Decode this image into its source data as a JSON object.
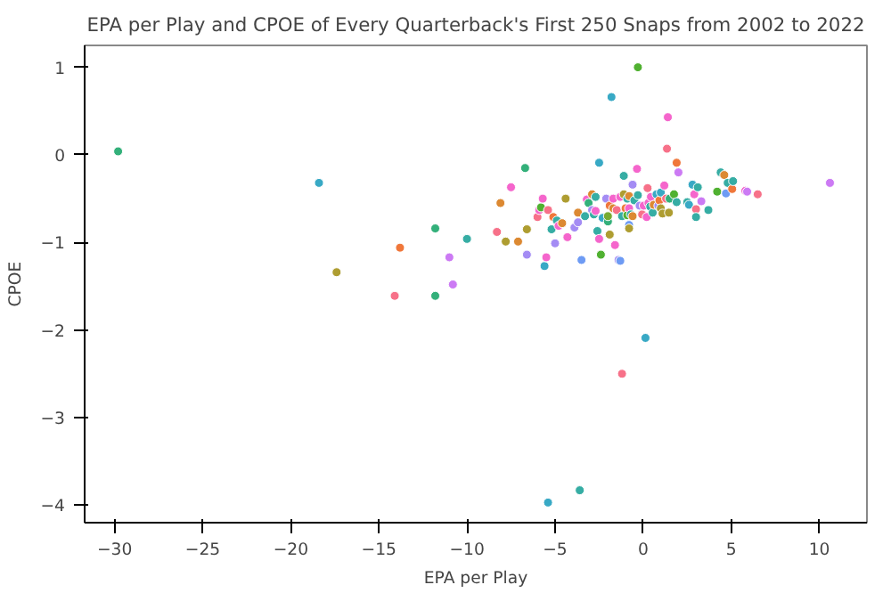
{
  "chart_data": {
    "type": "scatter",
    "title": "EPA per Play and CPOE of Every Quarterback's First 250 Snaps from 2002 to 2022",
    "xlabel": "EPA per Play",
    "ylabel": "CPOE",
    "xlim": [
      -31.7,
      12.7
    ],
    "ylim": [
      -4.2,
      1.25
    ],
    "xticks": [
      -30,
      -25,
      -20,
      -15,
      -10,
      -5,
      0,
      5,
      10
    ],
    "yticks": [
      -4,
      -3,
      -2,
      -1,
      0,
      1
    ],
    "grid": false,
    "marker": "circle",
    "x": [
      -29.8,
      -18.4,
      -17.4,
      -13.8,
      -14.1,
      -11.8,
      -11.8,
      -11.0,
      -10.8,
      -10.0,
      -8.3,
      -8.1,
      -7.8,
      -7.5,
      -7.1,
      -6.7,
      -6.6,
      -6.6,
      -6.0,
      -5.9,
      -5.8,
      -5.7,
      -5.6,
      -5.5,
      -5.4,
      -5.2,
      -5.1,
      -5.0,
      -4.9,
      -4.8,
      -4.6,
      -4.4,
      -4.3,
      -3.9,
      -3.7,
      -3.7,
      -3.5,
      -3.6,
      -5.4,
      -3.3,
      -3.2,
      -3.1,
      -2.9,
      -2.9,
      -2.8,
      -2.7,
      -2.7,
      -2.6,
      -2.5,
      -2.5,
      -2.4,
      -2.3,
      -2.0,
      -2.0,
      -2.1,
      -1.9,
      -1.8,
      -1.9,
      -1.7,
      -1.7,
      -1.6,
      -1.5,
      -1.4,
      -1.3,
      -1.3,
      -1.2,
      -1.2,
      -1.1,
      -1.1,
      -1.0,
      -0.9,
      -0.9,
      -0.8,
      -0.8,
      -0.8,
      -0.8,
      -0.7,
      -0.6,
      -0.6,
      -0.5,
      -0.35,
      -0.3,
      -0.3,
      -0.2,
      -0.06,
      0.03,
      0.13,
      0.2,
      0.25,
      0.3,
      0.4,
      0.44,
      0.54,
      0.6,
      0.76,
      0.86,
      0.92,
      1.0,
      1.0,
      1.1,
      1.2,
      1.3,
      1.35,
      1.4,
      1.46,
      1.5,
      1.75,
      1.9,
      1.9,
      2.0,
      2.5,
      2.6,
      2.8,
      2.9,
      3.0,
      3.0,
      3.1,
      3.3,
      3.7,
      4.2,
      4.4,
      4.6,
      4.7,
      4.8,
      5.05,
      5.1,
      5.8,
      5.9,
      6.5,
      10.6
    ],
    "values": [
      0.04,
      -0.32,
      -1.34,
      -1.06,
      -1.61,
      -0.84,
      -1.61,
      -1.17,
      -1.48,
      -0.96,
      -0.88,
      -0.55,
      -0.99,
      -0.37,
      -0.99,
      -0.15,
      -0.85,
      -1.14,
      -0.71,
      -0.63,
      -0.6,
      -0.5,
      -1.27,
      -1.17,
      -0.63,
      -0.85,
      -0.71,
      -1.01,
      -0.75,
      -0.81,
      -0.78,
      -0.5,
      -0.94,
      -0.83,
      -0.66,
      -0.77,
      -1.2,
      -3.83,
      -3.97,
      -0.7,
      -0.51,
      -0.55,
      -0.45,
      -0.63,
      -0.68,
      -0.48,
      -0.64,
      -0.87,
      -0.09,
      -0.96,
      -1.14,
      -0.72,
      -0.76,
      -0.7,
      -0.5,
      -0.91,
      0.66,
      -0.58,
      -0.61,
      -0.5,
      -1.03,
      -0.63,
      -1.2,
      -1.21,
      -0.48,
      -0.7,
      -2.5,
      -0.24,
      -0.45,
      -0.61,
      -0.5,
      -0.69,
      -0.47,
      -0.8,
      -0.84,
      -0.61,
      -0.68,
      -0.34,
      -0.7,
      -0.52,
      -0.16,
      1.0,
      -0.46,
      -0.58,
      -0.68,
      -0.58,
      -2.09,
      -0.71,
      -0.38,
      -0.55,
      -0.59,
      -0.48,
      -0.66,
      -0.57,
      -0.45,
      -0.58,
      -0.52,
      -0.43,
      -0.61,
      -0.67,
      -0.35,
      -0.5,
      0.07,
      0.43,
      -0.66,
      -0.5,
      -0.45,
      -0.09,
      -0.54,
      -0.2,
      -0.54,
      -0.57,
      -0.34,
      -0.45,
      -0.62,
      -0.71,
      -0.37,
      -0.53,
      -0.63,
      -0.42,
      -0.2,
      -0.23,
      -0.44,
      -0.32,
      -0.39,
      -0.3,
      -0.41,
      -0.42,
      -0.45,
      -0.32
    ],
    "colors": [
      "#33b07a",
      "#38a9c5",
      "#ae9d31",
      "#f0773a",
      "#f77189",
      "#33b07a",
      "#33b07a",
      "#cc7af4",
      "#cc7af4",
      "#36ada4",
      "#f77189",
      "#dc8932",
      "#ae9d31",
      "#f565cc",
      "#dc8932",
      "#33b07a",
      "#ae9d31",
      "#a48cf4",
      "#f77189",
      "#f565cc",
      "#50b131",
      "#f565cc",
      "#38a9c5",
      "#f565cc",
      "#f77189",
      "#36ada4",
      "#f0773a",
      "#a48cf4",
      "#36ada4",
      "#f565cc",
      "#dc8932",
      "#ae9d31",
      "#f565cc",
      "#a48cf4",
      "#dc8932",
      "#a48cf4",
      "#6e9bf4",
      "#36ada4",
      "#38a9c5",
      "#36ada4",
      "#f565cc",
      "#33b07a",
      "#dc8932",
      "#a48cf4",
      "#36ada4",
      "#36ada4",
      "#f565cc",
      "#36ada4",
      "#38a9c5",
      "#f565cc",
      "#50b131",
      "#38a9c5",
      "#33b07a",
      "#77ab31",
      "#a48cf4",
      "#ae9d31",
      "#38a9c5",
      "#f0773a",
      "#dc8932",
      "#f565cc",
      "#f565cc",
      "#f77189",
      "#a48cf4",
      "#6e9bf4",
      "#f565cc",
      "#36ada4",
      "#f77189",
      "#36ada4",
      "#ae9d31",
      "#f0773a",
      "#36ada4",
      "#50b131",
      "#dc8932",
      "#6e9bf4",
      "#ae9d31",
      "#f565cc",
      "#36ada4",
      "#a48cf4",
      "#dc8932",
      "#36ada4",
      "#f565cc",
      "#50b131",
      "#36ada4",
      "#a48cf4",
      "#f77189",
      "#f565cc",
      "#38a9c5",
      "#f565cc",
      "#f77189",
      "#f565cc",
      "#36ada4",
      "#f565cc",
      "#36ada4",
      "#dc8932",
      "#38a9c5",
      "#a48cf4",
      "#f0773a",
      "#38a9c5",
      "#ae9d31",
      "#ae9d31",
      "#f565cc",
      "#f77189",
      "#f77189",
      "#f565cc",
      "#ae9d31",
      "#33b07a",
      "#50b131",
      "#f0773a",
      "#36ada4",
      "#cc7af4",
      "#36ada4",
      "#38a9c5",
      "#38a9c5",
      "#f565cc",
      "#f77189",
      "#36ada4",
      "#36ada4",
      "#cc7af4",
      "#36ada4",
      "#50b131",
      "#36ada4",
      "#dc8932",
      "#6e9bf4",
      "#36ada4",
      "#f0773a",
      "#36ada4",
      "#f565cc",
      "#cc7af4",
      "#f77189",
      "#cc7af4"
    ]
  }
}
